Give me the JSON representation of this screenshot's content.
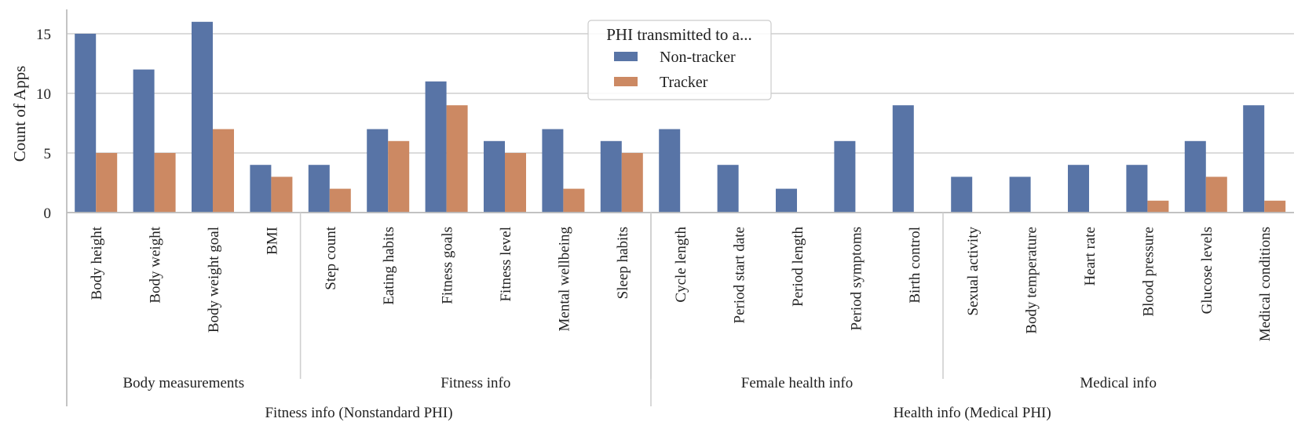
{
  "chart_data": {
    "type": "bar",
    "title": "",
    "xlabel": "",
    "ylabel": "Count of Apps",
    "ylim": [
      0,
      17
    ],
    "yticks": [
      0,
      5,
      10,
      15
    ],
    "grid": "horizontal",
    "legend": {
      "title": "PHI transmitted to a...",
      "placement": "top-center"
    },
    "categories": [
      "Body height",
      "Body weight",
      "Body weight goal",
      "BMI",
      "Step count",
      "Eating habits",
      "Fitness goals",
      "Fitness level",
      "Mental wellbeing",
      "Sleep habits",
      "Cycle length",
      "Period start date",
      "Period length",
      "Period symptoms",
      "Birth control",
      "Sexual activity",
      "Body temperature",
      "Heart rate",
      "Blood pressure",
      "Glucose levels",
      "Medical conditions"
    ],
    "series": [
      {
        "name": "Non-tracker",
        "color": "#5874a6",
        "values": [
          15,
          12,
          16,
          4,
          4,
          7,
          11,
          6,
          7,
          6,
          7,
          4,
          2,
          6,
          9,
          3,
          3,
          4,
          4,
          6,
          9
        ]
      },
      {
        "name": "Tracker",
        "color": "#cc8963",
        "values": [
          5,
          5,
          7,
          3,
          2,
          6,
          9,
          5,
          2,
          5,
          0,
          0,
          0,
          0,
          0,
          0,
          0,
          0,
          1,
          3,
          1
        ]
      }
    ],
    "groups": [
      {
        "label": "Body measurements",
        "start": 0,
        "end": 3
      },
      {
        "label": "Fitness info",
        "start": 4,
        "end": 9
      },
      {
        "label": "Female health info",
        "start": 10,
        "end": 14
      },
      {
        "label": "Medical info",
        "start": 15,
        "end": 20
      }
    ],
    "supergroups": [
      {
        "label": "Fitness info (Nonstandard PHI)",
        "start": 0,
        "end": 9
      },
      {
        "label": "Health info (Medical PHI)",
        "start": 10,
        "end": 20
      }
    ]
  }
}
